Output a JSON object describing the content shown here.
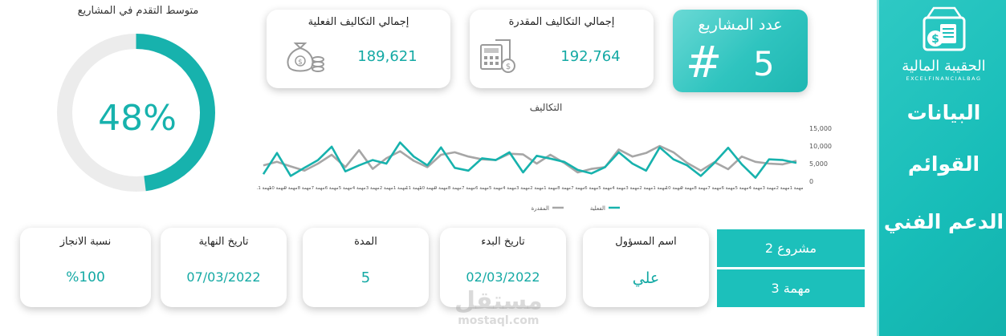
{
  "sidebar": {
    "logo_name": "الحقيبة المالية",
    "logo_sub": "EXCELFINANCIALBAG",
    "items": [
      {
        "label": "البيانات"
      },
      {
        "label": "القوائم"
      },
      {
        "label": "الدعم الفني"
      }
    ]
  },
  "kpis": {
    "projects_count_label": "عدد المشاريع",
    "projects_count_symbol": "#",
    "projects_count_value": "5",
    "estimated_label": "إجمالي التكاليف المقدرة",
    "estimated_value": "192,764",
    "actual_label": "إجمالي التكاليف الفعلية",
    "actual_value": "189,621"
  },
  "progress": {
    "title": "متوسط التقدم في المشاريع",
    "value_text": "48%",
    "fraction": 0.48
  },
  "chart_data": {
    "type": "line",
    "title": "التكاليف",
    "ylim": [
      0,
      15000
    ],
    "yticks": [
      "15,000",
      "10,000",
      "5,000",
      "0"
    ],
    "ytick_values": [
      15000,
      10000,
      5000,
      0
    ],
    "categories": [
      "مهمة 1",
      "مهمة 2",
      "مهمة 3",
      "مهمة 4",
      "مهمة 5",
      "مهمة 6",
      "مهمة 7",
      "مهمة 8",
      "مهمة 9",
      "مهمة 10",
      "مهمة 1",
      "مهمة 2",
      "مهمة 3",
      "مهمة 4",
      "مهمة 5",
      "مهمة 6",
      "مهمة 7",
      "مهمة 8",
      "مهمة 1",
      "مهمة 2",
      "مهمة 3",
      "مهمة 4",
      "مهمة 5",
      "مهمة 6",
      "مهمة 7",
      "مهمة 8",
      "مهمة 9",
      "مهمة 10",
      "مهمة 11",
      "مهمة 1",
      "مهمة 2",
      "مهمة 3",
      "مهمة 4",
      "مهمة 5",
      "مهمة 6",
      "مهمة 7",
      "مهمة 8",
      "مهمة 9",
      "مهمة 10",
      "مهمة 11"
    ],
    "series": [
      {
        "name": "الفعلية",
        "color": "#17b2ad",
        "values": [
          5200,
          6000,
          6200,
          1000,
          4800,
          9500,
          5200,
          1500,
          4500,
          6200,
          9600,
          3000,
          5000,
          8200,
          4000,
          2200,
          3200,
          5500,
          6400,
          7200,
          2500,
          8200,
          6000,
          6500,
          3000,
          3800,
          9600,
          4500,
          7000,
          11000,
          5000,
          6000,
          4500,
          2800,
          9800,
          6000,
          3800,
          1500,
          8000,
          2000
        ]
      },
      {
        "name": "المقدرة",
        "color": "#a6a6a6",
        "values": [
          5800,
          4800,
          5000,
          5500,
          7000,
          3400,
          5400,
          3000,
          5200,
          8200,
          10000,
          8000,
          7000,
          9000,
          4000,
          3500,
          2500,
          5200,
          7500,
          5000,
          7600,
          7800,
          6000,
          6200,
          7000,
          8200,
          7500,
          4000,
          5800,
          8500,
          6500,
          3500,
          8800,
          4000,
          7500,
          5000,
          3000,
          4200,
          5500,
          4500
        ]
      }
    ],
    "legend": [
      "الفعلية",
      "المقدرة"
    ],
    "legend_position": "bottom"
  },
  "details": {
    "responsible_label": "اسم المسؤول",
    "responsible_value": "علي",
    "start_label": "تاريخ البدء",
    "start_value": "02/03/2022",
    "duration_label": "المدة",
    "duration_value": "5",
    "end_label": "تاريخ النهاية",
    "end_value": "07/03/2022",
    "completion_label": "نسبة الانجاز",
    "completion_value": "%100"
  },
  "selectors": {
    "project": "مشروع 2",
    "task": "مهمة 3"
  },
  "watermark": {
    "arabic": "مستقل",
    "latin": "mostaql.com"
  },
  "colors": {
    "accent": "#17b2ad",
    "accent_light": "#2ec9c4",
    "muted": "#a6a6a6"
  }
}
